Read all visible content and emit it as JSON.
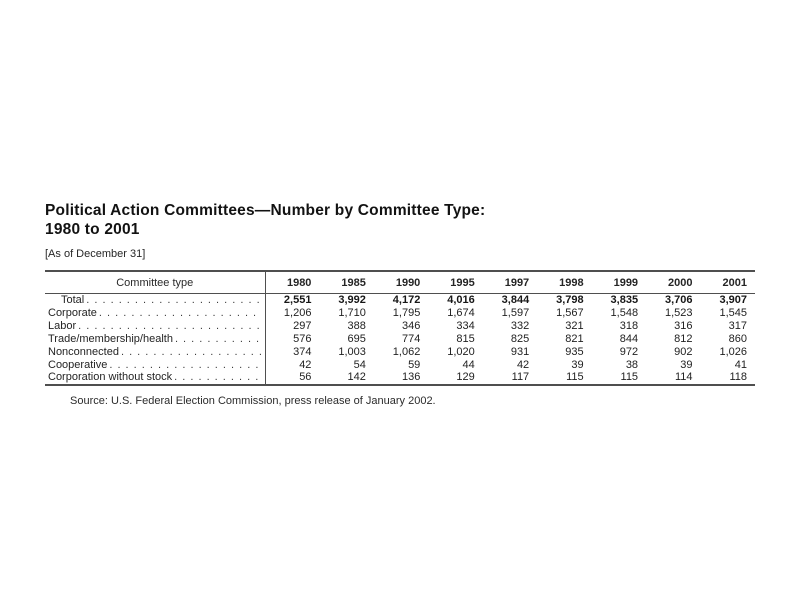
{
  "page": {
    "title_line1": "Political Action Committees—Number by Committee Type:",
    "title_line2": "1980 to 2001",
    "subtitle": "[As of December 31]",
    "source": "Source: U.S. Federal Election Commission, press release of January 2002."
  },
  "chart_data": {
    "type": "table",
    "title": "Political Action Committees—Number by Committee Type: 1980 to 2001",
    "columns": [
      "Committee type",
      "1980",
      "1985",
      "1990",
      "1995",
      "1997",
      "1998",
      "1999",
      "2000",
      "2001"
    ],
    "rows": [
      {
        "label": "Total",
        "indent": true,
        "values": [
          "2,551",
          "3,992",
          "4,172",
          "4,016",
          "3,844",
          "3,798",
          "3,835",
          "3,706",
          "3,907"
        ]
      },
      {
        "label": "Corporate",
        "indent": false,
        "values": [
          "1,206",
          "1,710",
          "1,795",
          "1,674",
          "1,597",
          "1,567",
          "1,548",
          "1,523",
          "1,545"
        ]
      },
      {
        "label": "Labor",
        "indent": false,
        "values": [
          "297",
          "388",
          "346",
          "334",
          "332",
          "321",
          "318",
          "316",
          "317"
        ]
      },
      {
        "label": "Trade/membership/health",
        "indent": false,
        "values": [
          "576",
          "695",
          "774",
          "815",
          "825",
          "821",
          "844",
          "812",
          "860"
        ]
      },
      {
        "label": "Nonconnected",
        "indent": false,
        "values": [
          "374",
          "1,003",
          "1,062",
          "1,020",
          "931",
          "935",
          "972",
          "902",
          "1,026"
        ]
      },
      {
        "label": "Cooperative",
        "indent": false,
        "values": [
          "42",
          "54",
          "59",
          "44",
          "42",
          "39",
          "38",
          "39",
          "41"
        ]
      },
      {
        "label": "Corporation without stock",
        "indent": false,
        "values": [
          "56",
          "142",
          "136",
          "129",
          "117",
          "115",
          "115",
          "114",
          "118"
        ]
      }
    ]
  }
}
